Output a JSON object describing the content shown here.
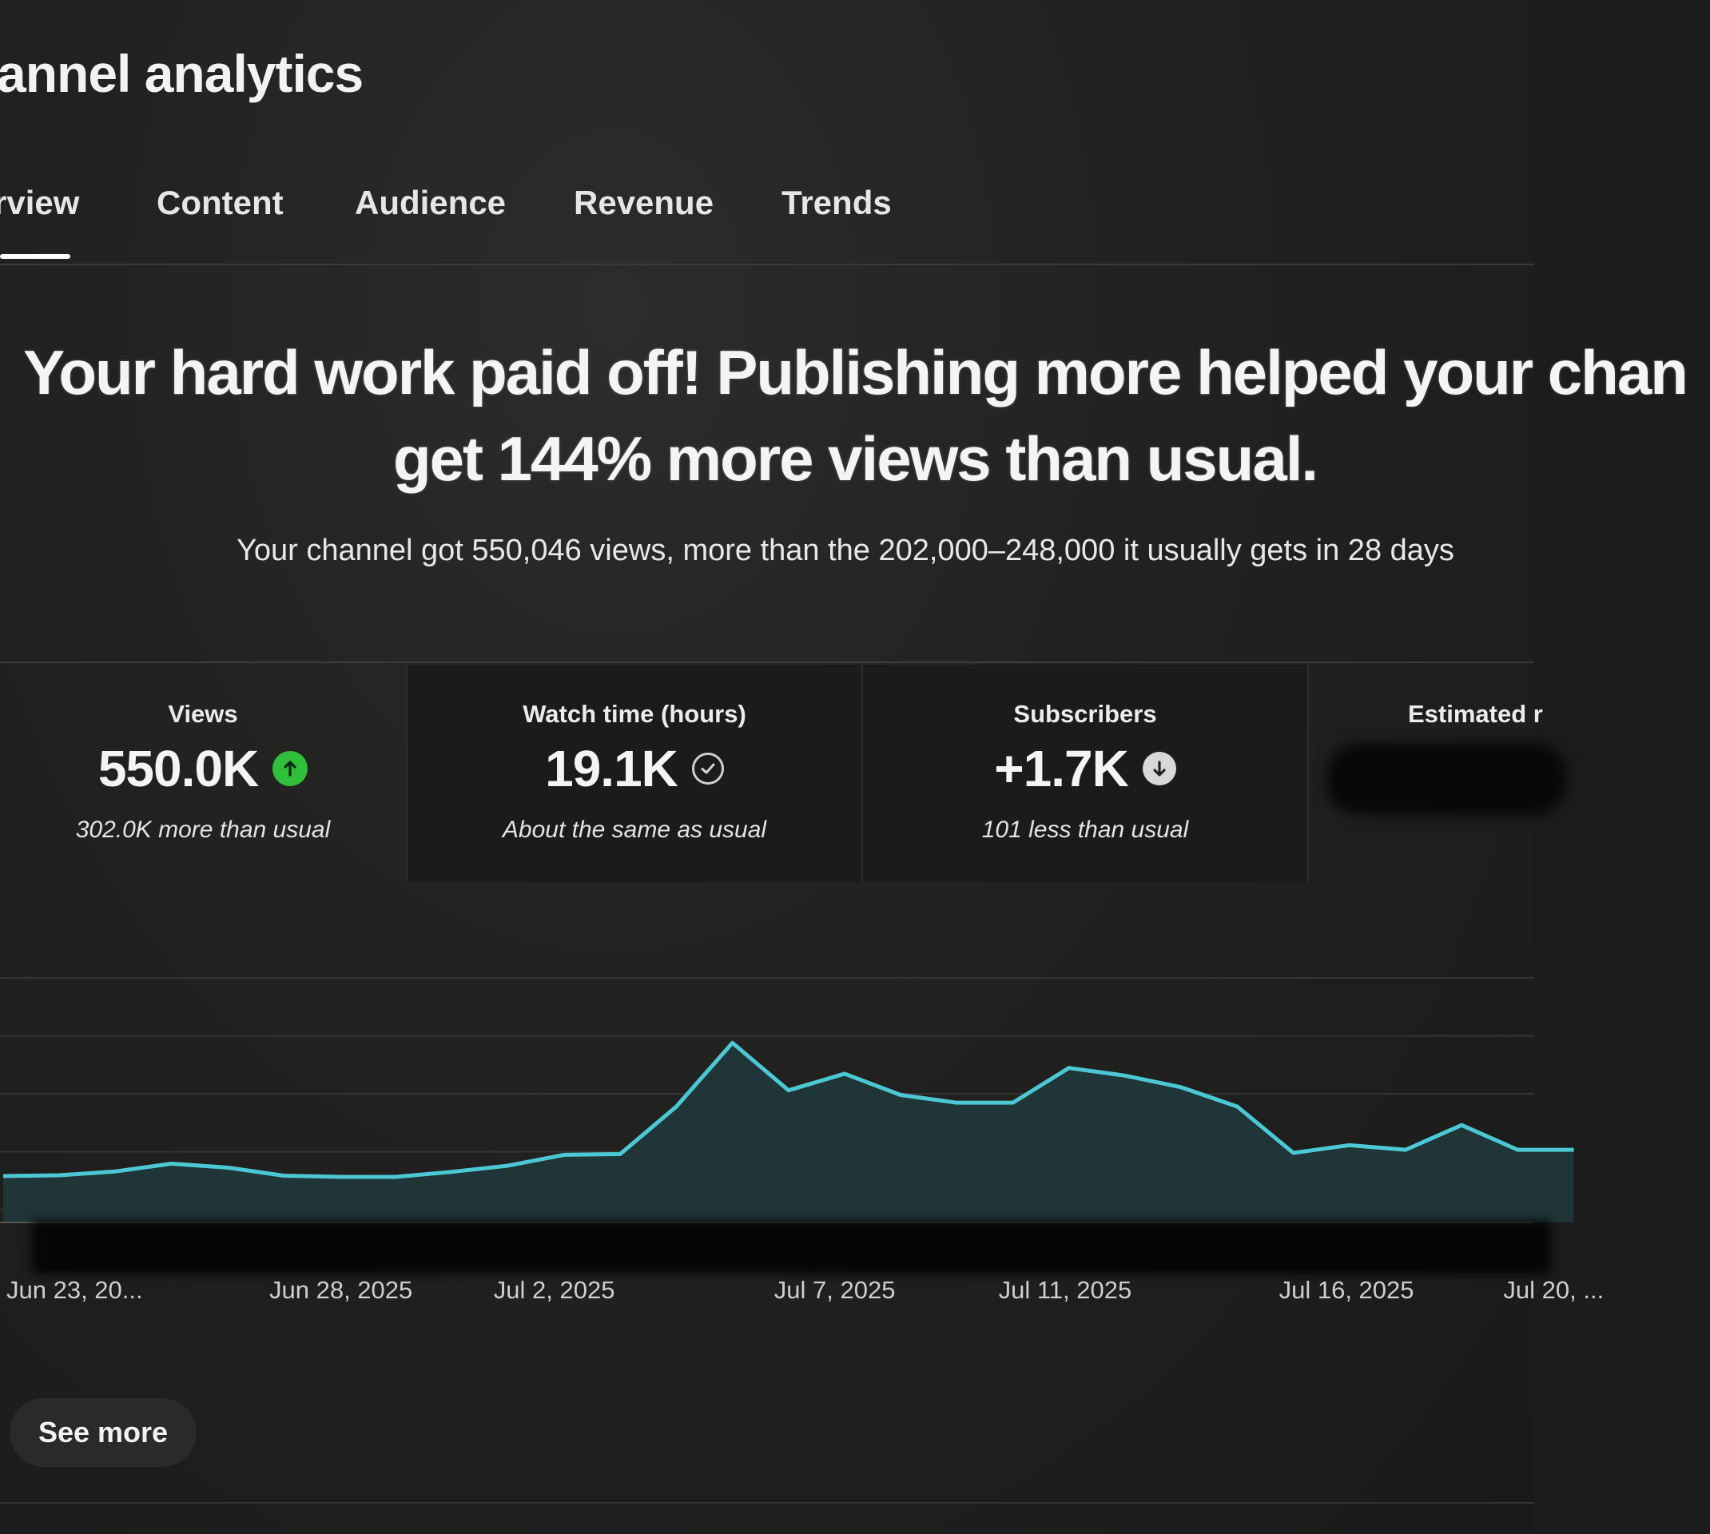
{
  "header": {
    "title": "annel analytics"
  },
  "tabs": [
    {
      "label": "rview",
      "active": true
    },
    {
      "label": "Content",
      "active": false
    },
    {
      "label": "Audience",
      "active": false
    },
    {
      "label": "Revenue",
      "active": false
    },
    {
      "label": "Trends",
      "active": false
    }
  ],
  "insight": {
    "headline_line1": "Your hard work paid off! Publishing more helped your chan",
    "headline_line2": "get 144% more views than usual.",
    "subline": "Your channel got 550,046 views, more than the 202,000–248,000 it usually gets in 28 days"
  },
  "cards": [
    {
      "label": "Views",
      "value": "550.0K",
      "note": "302.0K more than usual",
      "icon": "arrow-up-circle-icon",
      "icon_color": "#2fbf3a"
    },
    {
      "label": "Watch time (hours)",
      "value": "19.1K",
      "note": "About the same as usual",
      "icon": "check-circle-icon",
      "icon_color": "#cfcfcf"
    },
    {
      "label": "Subscribers",
      "value": "+1.7K",
      "note": "101 less than usual",
      "icon": "arrow-down-circle-icon",
      "icon_color": "#d8d8d8"
    },
    {
      "label": "Estimated r",
      "value": "",
      "note": "",
      "icon": "",
      "icon_color": ""
    }
  ],
  "chart_data": {
    "type": "area",
    "x": [
      "Jun 23",
      "Jun 24",
      "Jun 25",
      "Jun 26",
      "Jun 27",
      "Jun 28",
      "Jun 29",
      "Jun 30",
      "Jul 1",
      "Jul 2",
      "Jul 3",
      "Jul 4",
      "Jul 5",
      "Jul 6",
      "Jul 7",
      "Jul 8",
      "Jul 9",
      "Jul 10",
      "Jul 11",
      "Jul 12",
      "Jul 13",
      "Jul 14",
      "Jul 15",
      "Jul 16",
      "Jul 17",
      "Jul 18",
      "Jul 19",
      "Jul 20",
      "Jul 21"
    ],
    "values": [
      12,
      12.2,
      13.2,
      15.2,
      14.2,
      12.1,
      11.8,
      11.8,
      13.1,
      14.7,
      17.5,
      17.7,
      30,
      46.5,
      34.2,
      38.5,
      33,
      31,
      31,
      40,
      38,
      35,
      30,
      18,
      20,
      18.8,
      25.2,
      18.8,
      18.8
    ],
    "series_color": "#4cc8d4",
    "fill_color": "#1f3537",
    "tick_labels": [
      "Jun 23, 20...",
      "Jun 28, 2025",
      "Jul 2, 2025",
      "Jul 7, 2025",
      "Jul 11, 2025",
      "Jul 16, 2025",
      "Jul 20, ..."
    ],
    "tick_indices": [
      0,
      5,
      9,
      14,
      18,
      23,
      27
    ],
    "ylim": [
      0,
      60
    ],
    "gridlines": 4,
    "title": "",
    "xlabel": "",
    "ylabel": ""
  },
  "actions": {
    "see_more_label": "See more"
  },
  "colors": {
    "background": "#1c1c1c",
    "accent_green": "#2fbf3a",
    "line": "#4cc8d4"
  }
}
